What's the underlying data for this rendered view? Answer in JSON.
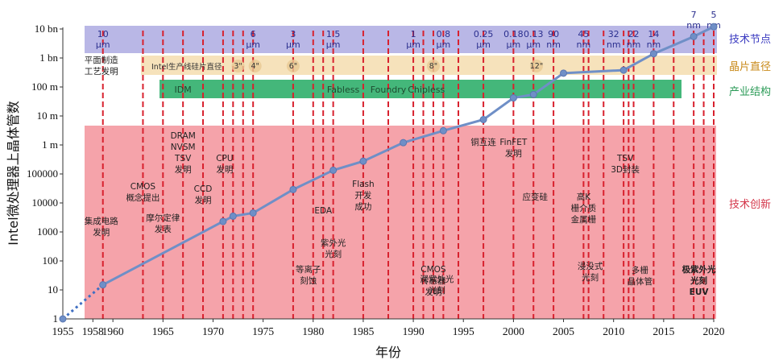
{
  "chart_data": {
    "type": "line",
    "ylabel": "Intel微处理器上晶体管数",
    "xlabel": "年份",
    "xlim": [
      1955,
      2020
    ],
    "x_ticks": [
      1955,
      1958,
      1960,
      1965,
      1970,
      1975,
      1980,
      1985,
      1990,
      1995,
      2000,
      2005,
      2010,
      2015,
      2020
    ],
    "y_ticks": [
      {
        "exp": 0,
        "label": "1"
      },
      {
        "exp": 1,
        "label": "10"
      },
      {
        "exp": 2,
        "label": "100"
      },
      {
        "exp": 3,
        "label": "1000"
      },
      {
        "exp": 4,
        "label": "10000"
      },
      {
        "exp": 5,
        "label": "100000"
      },
      {
        "exp": 6,
        "label": "1 m"
      },
      {
        "exp": 7,
        "label": "10 m"
      },
      {
        "exp": 8,
        "label": "100 m"
      },
      {
        "exp": 9,
        "label": "1 bn"
      },
      {
        "exp": 10,
        "label": "10 bn"
      }
    ],
    "series_dotted": [
      {
        "x": 1955,
        "y": 1
      },
      {
        "x": 1959,
        "y": 15
      }
    ],
    "series": [
      {
        "x": 1959,
        "y": 15
      },
      {
        "x": 1971,
        "y": 2300
      },
      {
        "x": 1972,
        "y": 3500
      },
      {
        "x": 1974,
        "y": 4500
      },
      {
        "x": 1978,
        "y": 29000
      },
      {
        "x": 1982,
        "y": 134000
      },
      {
        "x": 1985,
        "y": 275000
      },
      {
        "x": 1989,
        "y": 1200000
      },
      {
        "x": 1993,
        "y": 3100000
      },
      {
        "x": 1997,
        "y": 7500000
      },
      {
        "x": 2000,
        "y": 42000000
      },
      {
        "x": 2002,
        "y": 55000000
      },
      {
        "x": 2005,
        "y": 300000000
      },
      {
        "x": 2011,
        "y": 380000000
      },
      {
        "x": 2014,
        "y": 1400000000
      },
      {
        "x": 2018,
        "y": 5500000000
      },
      {
        "x": 2020,
        "y": 12000000000
      }
    ],
    "categories": {
      "node": "技术节点",
      "wafer": "晶片直径",
      "structure": "产业结构",
      "innovation": "技术创新"
    },
    "tech_nodes": [
      {
        "x": 1959,
        "lines": [
          "10",
          "μm"
        ]
      },
      {
        "x": 1974,
        "lines": [
          "6",
          "μm"
        ]
      },
      {
        "x": 1978,
        "lines": [
          "3",
          "μm"
        ]
      },
      {
        "x": 1982,
        "lines": [
          "1.5",
          "μm"
        ]
      },
      {
        "x": 1990,
        "lines": [
          "1",
          "μm"
        ]
      },
      {
        "x": 1993,
        "lines": [
          "0.8",
          "μm"
        ]
      },
      {
        "x": 1997,
        "lines": [
          "0.25",
          "μm"
        ]
      },
      {
        "x": 2000,
        "lines": [
          "0.18",
          "μm"
        ]
      },
      {
        "x": 2002,
        "lines": [
          "0.13",
          "μm"
        ]
      },
      {
        "x": 2004,
        "lines": [
          "90",
          "nm"
        ]
      },
      {
        "x": 2007,
        "lines": [
          "45",
          "nm"
        ]
      },
      {
        "x": 2010,
        "lines": [
          "32",
          "nm"
        ]
      },
      {
        "x": 2012,
        "lines": [
          "22",
          "nm"
        ]
      },
      {
        "x": 2014,
        "lines": [
          "14",
          "nm"
        ]
      },
      {
        "x": 2018,
        "lines": [
          "7",
          "nm"
        ]
      },
      {
        "x": 2020,
        "lines": [
          "5",
          "nm"
        ]
      }
    ],
    "wafer_title": "Intel生产线硅片直径",
    "wafer_sizes": [
      {
        "x": 1972.5,
        "label": "3\""
      },
      {
        "x": 1974.2,
        "label": "4\""
      },
      {
        "x": 1978,
        "label": "6\""
      },
      {
        "x": 1992,
        "label": "8\""
      },
      {
        "x": 2002.3,
        "label": "12\""
      }
    ],
    "structures": [
      {
        "x": 1967,
        "label": "IDM"
      },
      {
        "x": 1983,
        "label": "Fabless"
      },
      {
        "x": 1987.5,
        "label": "Foundry"
      },
      {
        "x": 1991.3,
        "label": "Chipless"
      }
    ],
    "innovations": [
      {
        "x": 1959,
        "lines": [
          "平面制造",
          "工艺发明"
        ],
        "pos": "top"
      },
      {
        "x": 1959,
        "lines": [
          "集成电路",
          "发明"
        ],
        "pos": "bottom"
      },
      {
        "x": 1963,
        "lines": [
          "CMOS",
          "概念提出"
        ]
      },
      {
        "x": 1965,
        "lines": [
          "摩尔定律",
          "发表"
        ]
      },
      {
        "x": 1967,
        "lines": [
          "DRAM",
          "NVSM",
          "TSV",
          "发明"
        ]
      },
      {
        "x": 1969,
        "lines": [
          "CCD",
          "发明"
        ]
      },
      {
        "x": 1971,
        "lines": [
          "CPU",
          "发明"
        ]
      },
      {
        "x": 1980,
        "lines": [
          "等离子",
          "刻蚀"
        ]
      },
      {
        "x": 1981,
        "lines": [
          "EDA"
        ]
      },
      {
        "x": 1982,
        "lines": [
          "紫外光",
          "光刻"
        ]
      },
      {
        "x": 1985,
        "lines": [
          "Flash",
          "开发",
          "成功"
        ]
      },
      {
        "x": 1992,
        "lines": [
          "CMOS",
          "传感器",
          "发明"
        ]
      },
      {
        "x": 1993,
        "lines": [
          "深紫外光",
          "光刻"
        ]
      },
      {
        "x": 1997,
        "lines": [
          "铜互连"
        ]
      },
      {
        "x": 2000,
        "lines": [
          "FinFET",
          "发明"
        ]
      },
      {
        "x": 2002,
        "lines": [
          "应变硅"
        ]
      },
      {
        "x": 2007,
        "lines": [
          "高K",
          "栅介质",
          "金属栅"
        ]
      },
      {
        "x": 2007.5,
        "lines": [
          "浸没式",
          "光刻"
        ]
      },
      {
        "x": 2011,
        "lines": [
          "TSV",
          "3D封装"
        ]
      },
      {
        "x": 2011.5,
        "lines": [
          "多栅",
          "晶体管"
        ]
      },
      {
        "x": 2019,
        "lines": [
          "极紫外光",
          "光刻",
          "EUV"
        ]
      }
    ]
  },
  "colors": {
    "node_band": "#b9b7e6",
    "wafer_band": "#f6e2bb",
    "structure_band": "#44b77a",
    "innovation_band": "#f5a3aa",
    "vline": "#d8212e",
    "series": "#6f8fc7",
    "series_dotted": "#3f6fc2"
  }
}
